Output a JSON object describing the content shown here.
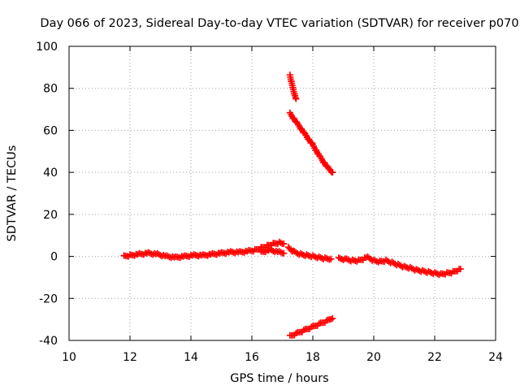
{
  "chart_data": {
    "type": "scatter",
    "title": "Day 066 of 2023, Sidereal Day-to-day VTEC variation (SDTVAR) for receiver p070",
    "xlabel": "GPS time / hours",
    "ylabel": "SDTVAR / TECUs",
    "xlim": [
      10,
      24
    ],
    "ylim": [
      -40,
      100
    ],
    "xticks": [
      "10",
      "12",
      "14",
      "16",
      "18",
      "20",
      "22",
      "24"
    ],
    "yticks": [
      "-40",
      "-20",
      "0",
      "20",
      "40",
      "60",
      "80",
      "100"
    ],
    "grid": true,
    "marker": "plus",
    "color": "#ff0000",
    "series": [
      {
        "name": "main",
        "points": [
          [
            11.8,
            0
          ],
          [
            12.0,
            0.5
          ],
          [
            12.3,
            1
          ],
          [
            12.6,
            1.5
          ],
          [
            12.9,
            1
          ],
          [
            13.2,
            0
          ],
          [
            13.5,
            -0.5
          ],
          [
            13.8,
            0
          ],
          [
            14.1,
            0.5
          ],
          [
            14.4,
            0.5
          ],
          [
            14.7,
            1
          ],
          [
            15.0,
            1.5
          ],
          [
            15.3,
            2
          ],
          [
            15.6,
            2
          ],
          [
            15.9,
            2.5
          ],
          [
            16.1,
            3
          ],
          [
            16.3,
            4
          ],
          [
            16.5,
            5
          ],
          [
            16.7,
            6
          ],
          [
            16.9,
            6.5
          ],
          [
            17.05,
            6
          ]
        ]
      },
      {
        "name": "main-lower",
        "points": [
          [
            16.3,
            2
          ],
          [
            16.6,
            3
          ],
          [
            16.9,
            2
          ],
          [
            17.05,
            1.5
          ]
        ]
      },
      {
        "name": "post",
        "points": [
          [
            17.2,
            4
          ],
          [
            17.4,
            2
          ],
          [
            17.6,
            1
          ],
          [
            17.8,
            0.5
          ],
          [
            18.0,
            0
          ],
          [
            18.2,
            -0.5
          ],
          [
            18.4,
            -1
          ],
          [
            18.6,
            -1.2
          ]
        ]
      },
      {
        "name": "evening",
        "points": [
          [
            18.85,
            -1
          ],
          [
            19.1,
            -1.5
          ],
          [
            19.3,
            -2
          ],
          [
            19.5,
            -2
          ],
          [
            19.7,
            -1
          ],
          [
            19.8,
            -0.5
          ],
          [
            20.0,
            -2
          ],
          [
            20.2,
            -2.5
          ],
          [
            20.4,
            -2
          ],
          [
            20.6,
            -3
          ],
          [
            20.8,
            -4
          ],
          [
            21.0,
            -5
          ],
          [
            21.2,
            -5.5
          ],
          [
            21.4,
            -6.5
          ],
          [
            21.6,
            -7
          ],
          [
            21.8,
            -7.5
          ],
          [
            22.0,
            -8
          ],
          [
            22.2,
            -8.5
          ],
          [
            22.4,
            -8
          ],
          [
            22.6,
            -7.5
          ],
          [
            22.85,
            -6
          ]
        ]
      },
      {
        "name": "jump-top",
        "points": [
          [
            17.25,
            86
          ],
          [
            17.3,
            83
          ],
          [
            17.35,
            80
          ],
          [
            17.4,
            77
          ],
          [
            17.45,
            75
          ]
        ]
      },
      {
        "name": "jump-mid",
        "points": [
          [
            17.25,
            68
          ],
          [
            17.5,
            63
          ],
          [
            17.75,
            58
          ],
          [
            18.0,
            53
          ],
          [
            18.25,
            47
          ],
          [
            18.5,
            42
          ],
          [
            18.65,
            40
          ]
        ]
      },
      {
        "name": "jump-bottom",
        "points": [
          [
            17.25,
            -38
          ],
          [
            17.5,
            -36.5
          ],
          [
            17.75,
            -35
          ],
          [
            18.0,
            -33.5
          ],
          [
            18.25,
            -32
          ],
          [
            18.5,
            -30.5
          ],
          [
            18.65,
            -29.5
          ]
        ]
      }
    ]
  }
}
